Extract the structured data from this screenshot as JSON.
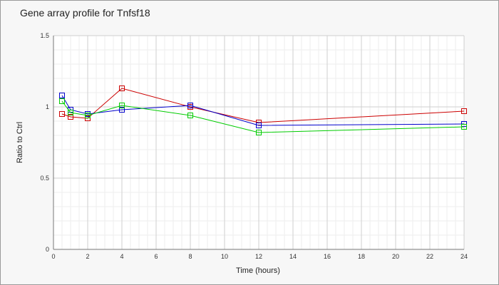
{
  "chart_data": {
    "type": "line",
    "title": "Gene array profile for Tnfsf18",
    "xlabel": "Time (hours)",
    "ylabel": "Ratio to Ctrl",
    "xlim": [
      0,
      24
    ],
    "ylim": [
      0,
      1.5
    ],
    "xticks": [
      0,
      2,
      4,
      6,
      8,
      10,
      12,
      14,
      16,
      18,
      20,
      22,
      24
    ],
    "yticks": [
      0,
      0.5,
      1,
      1.5
    ],
    "ytick_labels": [
      "0",
      "0.5",
      "1",
      "1.5"
    ],
    "grid": true,
    "legend": "none",
    "series": [
      {
        "color": "#cc0000",
        "x": [
          0.5,
          1,
          2,
          4,
          8,
          12,
          24
        ],
        "y": [
          0.95,
          0.93,
          0.92,
          1.13,
          1.0,
          0.89,
          0.97
        ]
      },
      {
        "color": "#0000cc",
        "x": [
          0.5,
          1,
          2,
          4,
          8,
          12,
          24
        ],
        "y": [
          1.08,
          0.98,
          0.95,
          0.98,
          1.01,
          0.87,
          0.88
        ]
      },
      {
        "color": "#00cc00",
        "x": [
          0.5,
          1,
          2,
          4,
          8,
          12,
          24
        ],
        "y": [
          1.04,
          0.96,
          0.94,
          1.01,
          0.94,
          0.82,
          0.86
        ]
      }
    ]
  }
}
